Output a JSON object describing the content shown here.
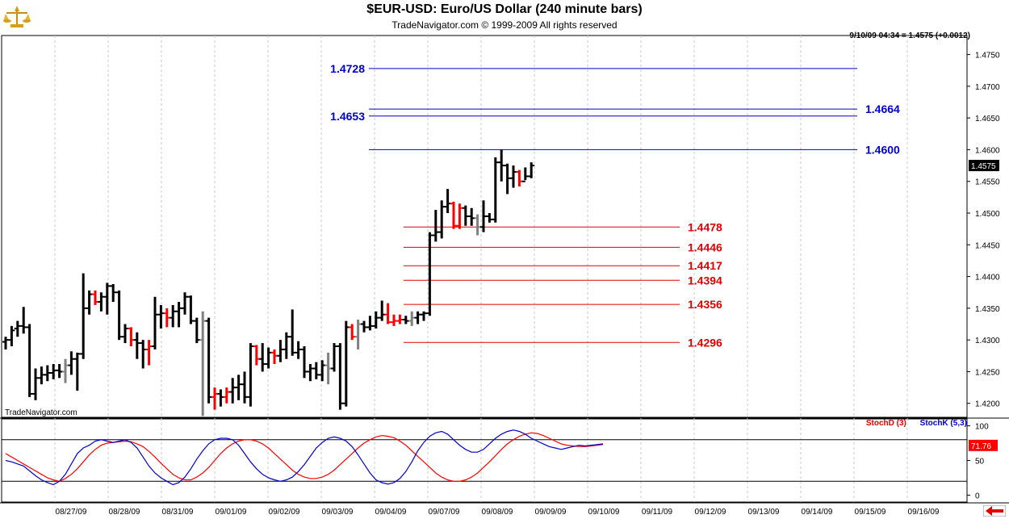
{
  "header": {
    "title": "$EUR-USD:  Euro/US Dollar  (240 minute bars)",
    "subtitle": "TradeNavigator.com © 1999-2009 All rights reserved",
    "logo_icon": "gold-scales-icon"
  },
  "quote": "9/10/09 04:34 = 1.4575 (+0.0012)",
  "watermark": "TradeNavigator.com",
  "colors": {
    "bar_up": "#000000",
    "bar_down": "#ff0000",
    "bar_neutral": "#808080",
    "resistance": "#0000cc",
    "support": "#dd0000",
    "stochd": "#ff0000",
    "stochk": "#0000cc",
    "grid": "#c8c8c8",
    "price_badge_bg": "#000000",
    "stoch_badge_bg": "#ff0000"
  },
  "legend": {
    "stochd": "StochD (3)",
    "stochk": "StochK (5,3)"
  },
  "chart_data": [
    {
      "type": "ohlc",
      "x_label_dates": [
        "08/27/09",
        "08/28/09",
        "08/31/09",
        "09/01/09",
        "09/02/09",
        "09/03/09",
        "09/04/09",
        "09/07/09",
        "09/08/09",
        "09/09/09",
        "09/10/09",
        "09/11/09",
        "09/12/09",
        "09/13/09",
        "09/14/09",
        "09/15/09",
        "09/16/09"
      ],
      "y_ticks": [
        "1.4750",
        "1.4700",
        "1.4650",
        "1.4600",
        "1.4550",
        "1.4500",
        "1.4450",
        "1.4400",
        "1.4350",
        "1.4300",
        "1.4250",
        "1.4200"
      ],
      "ylim": [
        1.4178,
        1.478
      ],
      "last_price": "1.4575",
      "resistance_levels": [
        {
          "label": "1.4728",
          "value": 1.4728,
          "label_side": "left"
        },
        {
          "label": "1.4664",
          "value": 1.4664,
          "label_side": "right"
        },
        {
          "label": "1.4653",
          "value": 1.4653,
          "label_side": "left"
        },
        {
          "label": "1.4600",
          "value": 1.46,
          "label_side": "right"
        }
      ],
      "support_levels": [
        {
          "label": "1.4478",
          "value": 1.4478
        },
        {
          "label": "1.4446",
          "value": 1.4446
        },
        {
          "label": "1.4417",
          "value": 1.4417
        },
        {
          "label": "1.4394",
          "value": 1.4394
        },
        {
          "label": "1.4356",
          "value": 1.4356
        },
        {
          "label": "1.4296",
          "value": 1.4296
        }
      ],
      "bars": [
        [
          1.4297,
          1.4305,
          1.4285,
          1.43,
          "k"
        ],
        [
          1.43,
          1.4322,
          1.429,
          1.4315,
          "k"
        ],
        [
          1.4318,
          1.433,
          1.4305,
          1.4322,
          "k"
        ],
        [
          1.4322,
          1.4352,
          1.431,
          1.432,
          "k"
        ],
        [
          1.432,
          1.4325,
          1.421,
          1.4215,
          "k"
        ],
        [
          1.4215,
          1.4255,
          1.4205,
          1.424,
          "k"
        ],
        [
          1.424,
          1.4258,
          1.423,
          1.4245,
          "k"
        ],
        [
          1.4245,
          1.426,
          1.4235,
          1.4248,
          "k"
        ],
        [
          1.4248,
          1.4262,
          1.4238,
          1.4252,
          "k"
        ],
        [
          1.4252,
          1.4262,
          1.424,
          1.425,
          "k"
        ],
        [
          1.425,
          1.427,
          1.4232,
          1.426,
          "g"
        ],
        [
          1.426,
          1.4282,
          1.4245,
          1.427,
          "k"
        ],
        [
          1.427,
          1.428,
          1.422,
          1.4278,
          "k"
        ],
        [
          1.4278,
          1.4405,
          1.427,
          1.435,
          "k"
        ],
        [
          1.435,
          1.4378,
          1.434,
          1.4372,
          "k"
        ],
        [
          1.4372,
          1.4378,
          1.4355,
          1.436,
          "r"
        ],
        [
          1.436,
          1.4375,
          1.4345,
          1.4368,
          "k"
        ],
        [
          1.4368,
          1.439,
          1.434,
          1.4385,
          "k"
        ],
        [
          1.4385,
          1.4388,
          1.436,
          1.4375,
          "k"
        ],
        [
          1.4375,
          1.4378,
          1.43,
          1.4305,
          "k"
        ],
        [
          1.4305,
          1.4325,
          1.4295,
          1.4318,
          "k"
        ],
        [
          1.4318,
          1.432,
          1.429,
          1.43,
          "r"
        ],
        [
          1.43,
          1.4312,
          1.427,
          1.4295,
          "k"
        ],
        [
          1.4295,
          1.43,
          1.4255,
          1.4285,
          "k"
        ],
        [
          1.4285,
          1.43,
          1.426,
          1.429,
          "r"
        ],
        [
          1.429,
          1.4368,
          1.4285,
          1.434,
          "k"
        ],
        [
          1.434,
          1.4355,
          1.4318,
          1.4342,
          "k"
        ],
        [
          1.4342,
          1.435,
          1.432,
          1.4335,
          "r"
        ],
        [
          1.4335,
          1.4355,
          1.432,
          1.4345,
          "k"
        ],
        [
          1.4345,
          1.436,
          1.432,
          1.435,
          "k"
        ],
        [
          1.435,
          1.4375,
          1.434,
          1.4368,
          "k"
        ],
        [
          1.4368,
          1.437,
          1.4325,
          1.433,
          "k"
        ],
        [
          1.433,
          1.4335,
          1.4295,
          1.43,
          "k"
        ],
        [
          1.43,
          1.4345,
          1.418,
          1.433,
          "g"
        ],
        [
          1.433,
          1.4335,
          1.42,
          1.421,
          "k"
        ],
        [
          1.421,
          1.4225,
          1.419,
          1.4215,
          "r"
        ],
        [
          1.4215,
          1.4222,
          1.4195,
          1.421,
          "k"
        ],
        [
          1.421,
          1.4225,
          1.42,
          1.4218,
          "r"
        ],
        [
          1.4218,
          1.424,
          1.42,
          1.4225,
          "k"
        ],
        [
          1.4225,
          1.4245,
          1.4205,
          1.423,
          "k"
        ],
        [
          1.423,
          1.425,
          1.42,
          1.421,
          "k"
        ],
        [
          1.421,
          1.4295,
          1.4195,
          1.429,
          "k"
        ],
        [
          1.429,
          1.4292,
          1.426,
          1.427,
          "r"
        ],
        [
          1.427,
          1.4295,
          1.425,
          1.4262,
          "k"
        ],
        [
          1.4262,
          1.4288,
          1.4255,
          1.428,
          "k"
        ],
        [
          1.428,
          1.4285,
          1.4262,
          1.4275,
          "r"
        ],
        [
          1.4275,
          1.43,
          1.4265,
          1.4285,
          "k"
        ],
        [
          1.4285,
          1.4312,
          1.427,
          1.4305,
          "k"
        ],
        [
          1.4305,
          1.4348,
          1.4275,
          1.428,
          "k"
        ],
        [
          1.428,
          1.4298,
          1.427,
          1.4285,
          "k"
        ],
        [
          1.4285,
          1.429,
          1.424,
          1.425,
          "k"
        ],
        [
          1.425,
          1.4262,
          1.4235,
          1.4255,
          "k"
        ],
        [
          1.4255,
          1.4265,
          1.4238,
          1.4245,
          "k"
        ],
        [
          1.4245,
          1.4268,
          1.4235,
          1.426,
          "k"
        ],
        [
          1.426,
          1.428,
          1.423,
          1.4255,
          "g"
        ],
        [
          1.4255,
          1.4295,
          1.425,
          1.429,
          "k"
        ],
        [
          1.429,
          1.4295,
          1.419,
          1.42,
          "k"
        ],
        [
          1.42,
          1.433,
          1.4195,
          1.432,
          "k"
        ],
        [
          1.432,
          1.4325,
          1.43,
          1.4305,
          "r"
        ],
        [
          1.4305,
          1.4332,
          1.4285,
          1.4325,
          "g"
        ],
        [
          1.4325,
          1.433,
          1.4312,
          1.432,
          "k"
        ],
        [
          1.432,
          1.4338,
          1.4315,
          1.4322,
          "k"
        ],
        [
          1.4322,
          1.4345,
          1.4318,
          1.4335,
          "k"
        ],
        [
          1.4335,
          1.4362,
          1.433,
          1.434,
          "k"
        ],
        [
          1.434,
          1.4358,
          1.4325,
          1.4328,
          "r"
        ],
        [
          1.4328,
          1.434,
          1.4322,
          1.433,
          "r"
        ],
        [
          1.433,
          1.434,
          1.4325,
          1.4332,
          "r"
        ],
        [
          1.4332,
          1.4338,
          1.4325,
          1.433,
          "k"
        ],
        [
          1.433,
          1.4345,
          1.4322,
          1.4335,
          "g"
        ],
        [
          1.4335,
          1.4345,
          1.4325,
          1.434,
          "k"
        ],
        [
          1.434,
          1.4345,
          1.433,
          1.4342,
          "k"
        ],
        [
          1.4342,
          1.447,
          1.4338,
          1.4465,
          "k"
        ],
        [
          1.4465,
          1.4505,
          1.4455,
          1.447,
          "k"
        ],
        [
          1.447,
          1.452,
          1.446,
          1.451,
          "k"
        ],
        [
          1.451,
          1.4538,
          1.45,
          1.4515,
          "k"
        ],
        [
          1.4515,
          1.4518,
          1.4475,
          1.448,
          "r"
        ],
        [
          1.448,
          1.4515,
          1.4475,
          1.4508,
          "r"
        ],
        [
          1.4508,
          1.4512,
          1.448,
          1.4495,
          "k"
        ],
        [
          1.4495,
          1.4508,
          1.448,
          1.4492,
          "k"
        ],
        [
          1.4492,
          1.4498,
          1.4465,
          1.4478,
          "g"
        ],
        [
          1.4478,
          1.452,
          1.447,
          1.4495,
          "k"
        ],
        [
          1.4495,
          1.45,
          1.4485,
          1.449,
          "k"
        ],
        [
          1.449,
          1.4588,
          1.4485,
          1.458,
          "k"
        ],
        [
          1.458,
          1.46,
          1.455,
          1.4575,
          "k"
        ],
        [
          1.4575,
          1.4578,
          1.453,
          1.4555,
          "k"
        ],
        [
          1.4555,
          1.4575,
          1.454,
          1.4565,
          "k"
        ],
        [
          1.4565,
          1.4568,
          1.4542,
          1.455,
          "r"
        ],
        [
          1.455,
          1.4572,
          1.4552,
          1.4558,
          "k"
        ],
        [
          1.4558,
          1.458,
          1.4555,
          1.4575,
          "k"
        ]
      ]
    },
    {
      "type": "line",
      "title": "",
      "ylim": [
        -10,
        110
      ],
      "y_ticks": [
        "100",
        "50",
        "0"
      ],
      "reference_lines": [
        80,
        20
      ],
      "last_value": "71.76",
      "series": [
        {
          "name": "StochD (3)",
          "values": [
            60,
            55,
            50,
            45,
            40,
            35,
            30,
            25,
            22,
            20,
            24,
            30,
            38,
            48,
            58,
            66,
            72,
            75,
            76,
            77,
            78,
            77,
            74,
            70,
            63,
            55,
            46,
            38,
            30,
            25,
            22,
            22,
            26,
            32,
            40,
            50,
            60,
            68,
            74,
            78,
            80,
            80,
            78,
            74,
            68,
            60,
            52,
            44,
            36,
            30,
            26,
            24,
            24,
            26,
            30,
            36,
            44,
            52,
            60,
            68,
            75,
            80,
            84,
            86,
            85,
            83,
            78,
            72,
            64,
            56,
            48,
            40,
            32,
            26,
            22,
            20,
            20,
            22,
            26,
            32,
            40,
            48,
            57,
            66,
            74,
            80,
            85,
            88,
            90,
            89,
            86,
            82,
            78,
            74,
            72,
            71,
            70,
            70,
            71,
            72,
            73
          ]
        },
        {
          "name": "StochK (5,3)",
          "values": [
            50,
            48,
            45,
            42,
            35,
            28,
            22,
            18,
            15,
            20,
            30,
            45,
            60,
            68,
            72,
            78,
            80,
            78,
            76,
            78,
            80,
            76,
            68,
            55,
            42,
            32,
            25,
            20,
            15,
            18,
            26,
            38,
            52,
            64,
            74,
            80,
            82,
            82,
            80,
            72,
            60,
            48,
            38,
            30,
            25,
            22,
            20,
            22,
            26,
            34,
            44,
            56,
            68,
            76,
            82,
            84,
            82,
            78,
            70,
            58,
            45,
            32,
            22,
            18,
            16,
            18,
            24,
            34,
            48,
            64,
            76,
            85,
            90,
            92,
            88,
            80,
            72,
            66,
            62,
            62,
            66,
            74,
            82,
            88,
            92,
            94,
            92,
            88,
            82,
            78,
            74,
            70,
            68,
            66,
            68,
            70,
            72,
            71,
            72,
            73,
            74
          ]
        }
      ]
    }
  ]
}
